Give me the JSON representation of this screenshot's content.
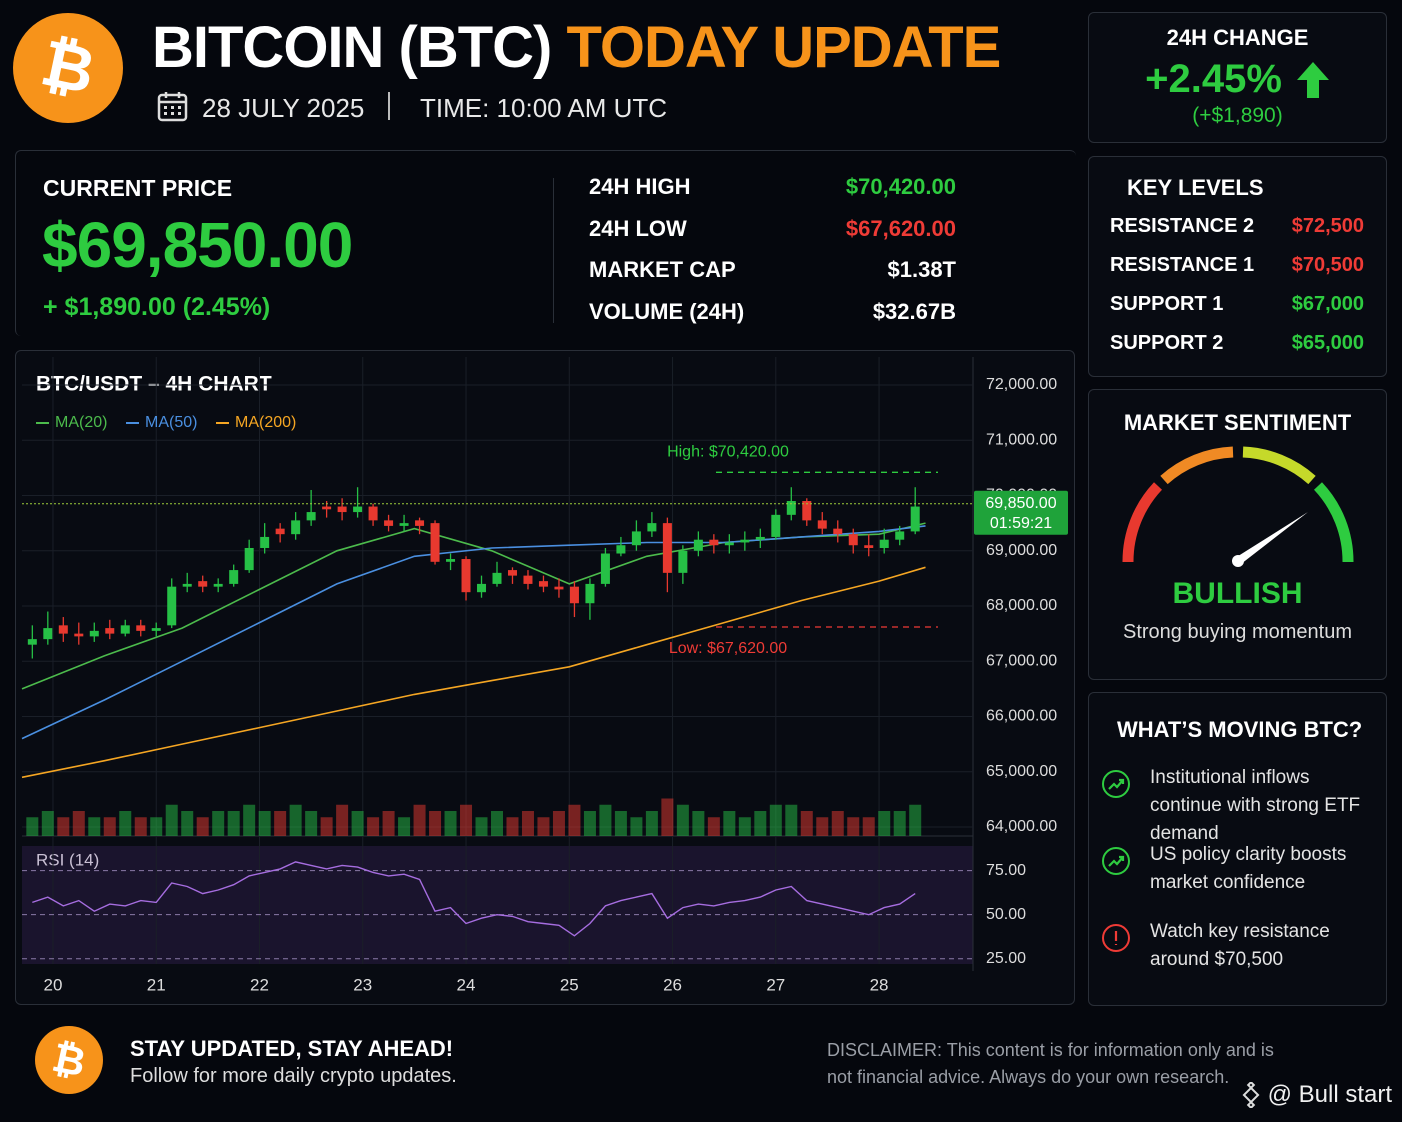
{
  "header": {
    "logo": "₿",
    "title_main": "BITCOIN (BTC)",
    "title_accent": "TODAY UPDATE",
    "date": "28 JULY 2025",
    "time": "TIME: 10:00 AM UTC"
  },
  "change_card": {
    "title": "24H CHANGE",
    "percent": "+2.45%",
    "amount": "(+$1,890)",
    "color": "#2ecc40"
  },
  "price_panel": {
    "label": "CURRENT PRICE",
    "price": "$69,850.00",
    "change": "+ $1,890.00 (2.45%)",
    "color": "#2ecc40"
  },
  "stats": [
    {
      "label": "24H HIGH",
      "value": "$70,420.00",
      "color": "#2ecc40"
    },
    {
      "label": "24H LOW",
      "value": "$67,620.00",
      "color": "#ef3b36"
    },
    {
      "label": "MARKET CAP",
      "value": "$1.38T",
      "color": "#ffffff"
    },
    {
      "label": "VOLUME (24H)",
      "value": "$32.67B",
      "color": "#ffffff"
    }
  ],
  "key_levels": {
    "title": "KEY LEVELS",
    "rows": [
      {
        "label": "RESISTANCE 2",
        "value": "$72,500",
        "color": "#ef3b36"
      },
      {
        "label": "RESISTANCE 1",
        "value": "$70,500",
        "color": "#ef3b36"
      },
      {
        "label": "SUPPORT 1",
        "value": "$67,000",
        "color": "#2ecc40"
      },
      {
        "label": "SUPPORT 2",
        "value": "$65,000",
        "color": "#2ecc40"
      }
    ]
  },
  "sentiment": {
    "title": "MARKET SENTIMENT",
    "status": "BULLISH",
    "note": "Strong buying momentum",
    "color": "#2ecc40"
  },
  "moving": {
    "title": "WHAT’S MOVING BTC?",
    "items": [
      {
        "text": "Institutional inflows continue with strong ETF demand",
        "color": "#2ecc40"
      },
      {
        "text": "US policy clarity boosts market confidence",
        "color": "#2ecc40"
      },
      {
        "text": "Watch key resistance around $70,500",
        "color": "#ef3b36"
      }
    ]
  },
  "footer": {
    "logo": "₿",
    "headline": "STAY UPDATED, STAY AHEAD!",
    "subline": "Follow for more daily crypto updates.",
    "disclaimer_label": "DISCLAIMER:",
    "disclaimer_text": "This content is for information only and is not financial advice. Always do your own research.",
    "watermark": "@ Bull start"
  },
  "chart_data": {
    "type": "candlestick",
    "title": "BTC/USDT – 4H CHART",
    "xlim": [
      19.7,
      28.9
    ],
    "xticks": [
      20,
      21,
      22,
      23,
      24,
      25,
      26,
      27,
      28
    ],
    "ylim": [
      64000,
      72000
    ],
    "yticks": [
      {
        "value": 64000,
        "label": "64,000.00"
      },
      {
        "value": 65000,
        "label": "65,000.00"
      },
      {
        "value": 66000,
        "label": "66,000.00"
      },
      {
        "value": 67000,
        "label": "67,000.00"
      },
      {
        "value": 68000,
        "label": "68,000.00"
      },
      {
        "value": 69000,
        "label": "69,000.00"
      },
      {
        "value": 70000,
        "label": "70,000.00"
      },
      {
        "value": 71000,
        "label": "71,000.00"
      },
      {
        "value": 72000,
        "label": "72,000.00"
      }
    ],
    "grid": true,
    "up_color": "#26c046",
    "down_color": "#e8392f",
    "candles": {
      "x": [
        19.8,
        19.95,
        20.1,
        20.25,
        20.4,
        20.55,
        20.7,
        20.85,
        21.0,
        21.15,
        21.3,
        21.45,
        21.6,
        21.75,
        21.9,
        22.05,
        22.2,
        22.35,
        22.5,
        22.65,
        22.8,
        22.95,
        23.1,
        23.25,
        23.4,
        23.55,
        23.7,
        23.85,
        24.0,
        24.15,
        24.3,
        24.45,
        24.6,
        24.75,
        24.9,
        25.05,
        25.2,
        25.35,
        25.5,
        25.65,
        25.8,
        25.95,
        26.1,
        26.25,
        26.4,
        26.55,
        26.7,
        26.85,
        27.0,
        27.15,
        27.3,
        27.45,
        27.6,
        27.75,
        27.9,
        28.05,
        28.2,
        28.35
      ],
      "ohlc": [
        [
          67300,
          67650,
          67050,
          67400
        ],
        [
          67400,
          67900,
          67300,
          67600
        ],
        [
          67650,
          67800,
          67350,
          67500
        ],
        [
          67500,
          67700,
          67300,
          67450
        ],
        [
          67450,
          67700,
          67350,
          67550
        ],
        [
          67600,
          67750,
          67400,
          67500
        ],
        [
          67500,
          67750,
          67450,
          67650
        ],
        [
          67650,
          67750,
          67450,
          67550
        ],
        [
          67550,
          67700,
          67450,
          67600
        ],
        [
          67650,
          68500,
          67600,
          68350
        ],
        [
          68350,
          68600,
          68250,
          68400
        ],
        [
          68450,
          68550,
          68250,
          68350
        ],
        [
          68350,
          68500,
          68250,
          68400
        ],
        [
          68400,
          68750,
          68350,
          68650
        ],
        [
          68650,
          69200,
          68600,
          69050
        ],
        [
          69050,
          69500,
          68950,
          69250
        ],
        [
          69400,
          69500,
          69150,
          69300
        ],
        [
          69300,
          69700,
          69200,
          69550
        ],
        [
          69550,
          70100,
          69450,
          69700
        ],
        [
          69800,
          69900,
          69600,
          69750
        ],
        [
          69800,
          69950,
          69550,
          69700
        ],
        [
          69700,
          70150,
          69600,
          69800
        ],
        [
          69800,
          69850,
          69450,
          69550
        ],
        [
          69550,
          69650,
          69350,
          69450
        ],
        [
          69450,
          69650,
          69350,
          69500
        ],
        [
          69550,
          69600,
          69300,
          69450
        ],
        [
          69500,
          69550,
          68750,
          68800
        ],
        [
          68800,
          68950,
          68650,
          68850
        ],
        [
          68850,
          68900,
          68100,
          68250
        ],
        [
          68250,
          68550,
          68150,
          68400
        ],
        [
          68400,
          68800,
          68350,
          68600
        ],
        [
          68650,
          68700,
          68400,
          68550
        ],
        [
          68550,
          68650,
          68300,
          68400
        ],
        [
          68450,
          68550,
          68250,
          68350
        ],
        [
          68350,
          68500,
          68150,
          68300
        ],
        [
          68350,
          68450,
          67800,
          68050
        ],
        [
          68050,
          68500,
          67750,
          68400
        ],
        [
          68400,
          69050,
          68350,
          68950
        ],
        [
          68950,
          69250,
          68900,
          69100
        ],
        [
          69100,
          69550,
          69000,
          69350
        ],
        [
          69350,
          69700,
          69250,
          69500
        ],
        [
          69500,
          69600,
          68250,
          68600
        ],
        [
          68600,
          69100,
          68400,
          69000
        ],
        [
          69000,
          69350,
          68900,
          69200
        ],
        [
          69200,
          69300,
          68950,
          69100
        ],
        [
          69100,
          69300,
          68950,
          69150
        ],
        [
          69150,
          69350,
          69000,
          69200
        ],
        [
          69200,
          69400,
          69050,
          69250
        ],
        [
          69250,
          69750,
          69200,
          69650
        ],
        [
          69650,
          70150,
          69550,
          69900
        ],
        [
          69900,
          69950,
          69450,
          69550
        ],
        [
          69550,
          69700,
          69300,
          69400
        ],
        [
          69400,
          69550,
          69150,
          69300
        ],
        [
          69300,
          69400,
          68950,
          69100
        ],
        [
          69100,
          69300,
          68900,
          69050
        ],
        [
          69050,
          69400,
          68950,
          69200
        ],
        [
          69200,
          69450,
          69100,
          69350
        ],
        [
          69350,
          70150,
          69300,
          69800
        ]
      ]
    },
    "series": [
      {
        "name": "MA(20)",
        "color": "#4cbb4c",
        "x": [
          19.7,
          20.5,
          21.25,
          22,
          22.75,
          23.5,
          24.25,
          25,
          25.75,
          26.5,
          27.25,
          28,
          28.45
        ],
        "values": [
          66500,
          67100,
          67600,
          68300,
          69000,
          69400,
          69000,
          68400,
          68900,
          69150,
          69250,
          69300,
          69500
        ]
      },
      {
        "name": "MA(50)",
        "color": "#4a8fe0",
        "x": [
          19.7,
          20.5,
          21.25,
          22,
          22.75,
          23.5,
          24.25,
          25,
          25.75,
          26.5,
          27.25,
          28,
          28.45
        ],
        "values": [
          65600,
          66300,
          67000,
          67700,
          68400,
          68900,
          69050,
          69100,
          69150,
          69150,
          69250,
          69350,
          69450
        ]
      },
      {
        "name": "MA(200)",
        "color": "#f5a623",
        "x": [
          19.7,
          20.5,
          21.25,
          22,
          22.75,
          23.5,
          24.25,
          25,
          25.75,
          26.5,
          27.25,
          28,
          28.45
        ],
        "values": [
          64900,
          65200,
          65500,
          65800,
          66100,
          66400,
          66650,
          66900,
          67300,
          67700,
          68100,
          68450,
          68700
        ]
      }
    ],
    "volume": [
      3,
      4,
      3,
      4,
      3,
      3,
      4,
      3,
      3,
      5,
      4,
      3,
      4,
      4,
      5,
      4,
      4,
      5,
      4,
      3,
      5,
      4,
      3,
      4,
      3,
      5,
      4,
      4,
      5,
      3,
      4,
      3,
      4,
      3,
      4,
      5,
      4,
      5,
      4,
      3,
      4,
      6,
      5,
      4,
      3,
      4,
      3,
      4,
      5,
      5,
      4,
      3,
      4,
      3,
      3,
      4,
      4,
      5
    ],
    "volume_lim": [
      0,
      8
    ],
    "last_price": {
      "value": 69850,
      "label": "69,850.00",
      "timer": "01:59:21"
    },
    "annotations": [
      {
        "label": "High: $70,420.00",
        "value": 70420,
        "color": "#2ecc40"
      },
      {
        "label": "Low: $67,620.00",
        "value": 67620,
        "color": "#ef3b36"
      }
    ],
    "rsi": {
      "name": "RSI (14)",
      "color": "#a66de0",
      "ylim": [
        22,
        89
      ],
      "yticks": [
        {
          "value": 25,
          "label": "25.00"
        },
        {
          "value": 50,
          "label": "50.00"
        },
        {
          "value": 75,
          "label": "75.00"
        }
      ],
      "values": [
        57,
        60,
        55,
        58,
        52,
        56,
        55,
        58,
        57,
        68,
        66,
        62,
        64,
        67,
        72,
        74,
        76,
        80,
        78,
        76,
        78,
        77,
        74,
        72,
        73,
        70,
        52,
        54,
        45,
        48,
        50,
        49,
        46,
        45,
        44,
        38,
        45,
        55,
        58,
        60,
        62,
        48,
        54,
        56,
        55,
        57,
        58,
        60,
        64,
        66,
        58,
        56,
        54,
        52,
        50,
        54,
        56,
        62
      ]
    }
  }
}
